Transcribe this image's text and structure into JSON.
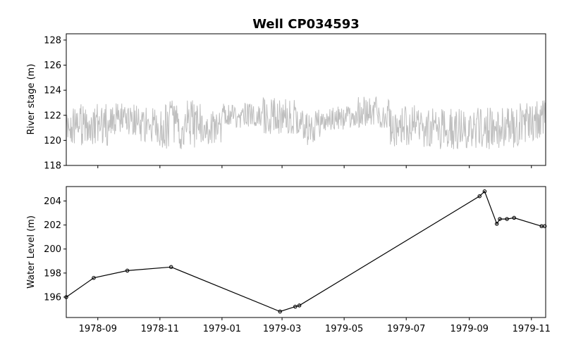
{
  "title": "Well CP034593",
  "colors": {
    "stage": "#bfbfbf",
    "level": "#000000",
    "axis": "#000000"
  },
  "chart_data": [
    {
      "type": "line",
      "ylabel": "River stage (m)",
      "xlim": [
        "1978-08-01",
        "1979-11-15"
      ],
      "ylim": [
        118,
        128.5
      ],
      "yticks": [
        "118",
        "120",
        "122",
        "124",
        "126",
        "128"
      ],
      "x_tick_dates": [
        "1978-09-01",
        "1978-11-01",
        "1979-01-01",
        "1979-03-01",
        "1979-05-01",
        "1979-07-01",
        "1979-09-01",
        "1979-11-01"
      ],
      "series": [
        {
          "style": "noisy-daily",
          "segments": [
            {
              "start": "1978-08-01",
              "end": "1978-09-12",
              "low": 119.5,
              "high": 122.9
            },
            {
              "start": "1978-09-12",
              "end": "1978-10-10",
              "low": 120.4,
              "high": 123.2
            },
            {
              "start": "1978-10-10",
              "end": "1978-11-01",
              "low": 119.8,
              "high": 122.6
            },
            {
              "start": "1978-11-01",
              "end": "1978-12-15",
              "low": 119.3,
              "high": 123.2
            },
            {
              "start": "1978-12-15",
              "end": "1979-01-01",
              "low": 119.6,
              "high": 122.4
            },
            {
              "start": "1979-01-01",
              "end": "1979-02-10",
              "low": 121.0,
              "high": 123.0
            },
            {
              "start": "1979-02-10",
              "end": "1979-03-15",
              "low": 120.5,
              "high": 123.4
            },
            {
              "start": "1979-03-15",
              "end": "1979-04-10",
              "low": 119.6,
              "high": 122.5
            },
            {
              "start": "1979-04-10",
              "end": "1979-05-10",
              "low": 120.8,
              "high": 122.8
            },
            {
              "start": "1979-05-10",
              "end": "1979-06-15",
              "low": 121.0,
              "high": 123.5
            },
            {
              "start": "1979-06-15",
              "end": "1979-07-15",
              "low": 119.5,
              "high": 122.8
            },
            {
              "start": "1979-07-15",
              "end": "1979-09-10",
              "low": 119.3,
              "high": 122.6
            },
            {
              "start": "1979-09-10",
              "end": "1979-10-20",
              "low": 119.3,
              "high": 122.6
            },
            {
              "start": "1979-10-20",
              "end": "1979-11-15",
              "low": 119.8,
              "high": 123.2
            }
          ]
        }
      ]
    },
    {
      "type": "line",
      "ylabel": "Water Level (m)",
      "xlim": [
        "1978-08-01",
        "1979-11-15"
      ],
      "ylim": [
        194.3,
        205.2
      ],
      "yticks": [
        "196",
        "198",
        "200",
        "202",
        "204"
      ],
      "x_tick_labels": [
        "1978-09",
        "1978-11",
        "1979-01",
        "1979-03",
        "1979-05",
        "1979-07",
        "1979-09",
        "1979-11"
      ],
      "x_tick_dates": [
        "1978-09-01",
        "1978-11-01",
        "1979-01-01",
        "1979-03-01",
        "1979-05-01",
        "1979-07-01",
        "1979-09-01",
        "1979-11-01"
      ],
      "series": [
        {
          "x": [
            "1978-08-01",
            "1978-08-28",
            "1978-09-30",
            "1978-11-12",
            "1979-02-27",
            "1979-03-14",
            "1979-03-18",
            "1979-09-11",
            "1979-09-16",
            "1979-09-28",
            "1979-10-01",
            "1979-10-08",
            "1979-10-15",
            "1979-11-11",
            "1979-11-14"
          ],
          "values": [
            196.0,
            197.6,
            198.2,
            198.5,
            194.8,
            195.2,
            195.3,
            204.4,
            204.8,
            202.1,
            202.5,
            202.5,
            202.6,
            201.9,
            201.9
          ]
        }
      ]
    }
  ]
}
